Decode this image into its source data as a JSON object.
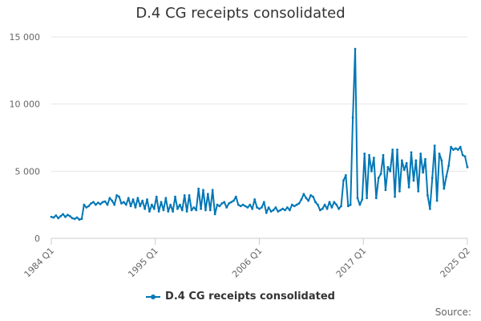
{
  "colors": {
    "series": "#0077b6",
    "grid": "#e6e6e6",
    "axis": "#cccccc"
  },
  "credits": "Source:",
  "chart_data": {
    "type": "line",
    "title": "D.4 CG receipts consolidated",
    "xlabel": "",
    "ylabel": "",
    "ylim": [
      0,
      15000
    ],
    "yticks": [
      {
        "value": 0,
        "label": "0"
      },
      {
        "value": 5000,
        "label": "5 000"
      },
      {
        "value": 10000,
        "label": "10 000"
      },
      {
        "value": 15000,
        "label": "15 000"
      }
    ],
    "xticks": [
      "1984 Q1",
      "1995 Q1",
      "2006 Q1",
      "2017 Q1",
      "2025 Q2"
    ],
    "grid": "horizontal",
    "legend": "bottom-center",
    "series": [
      {
        "name": "D.4 CG receipts consolidated",
        "values": [
          1600,
          1550,
          1700,
          1500,
          1650,
          1800,
          1600,
          1750,
          1650,
          1500,
          1450,
          1550,
          1400,
          1450,
          2500,
          2300,
          2400,
          2600,
          2700,
          2500,
          2650,
          2550,
          2700,
          2750,
          2500,
          3000,
          2800,
          2500,
          3200,
          3100,
          2600,
          2700,
          2500,
          3000,
          2400,
          2900,
          2300,
          3000,
          2400,
          2800,
          2200,
          2900,
          2000,
          2500,
          2200,
          3100,
          2000,
          2700,
          2100,
          3000,
          2000,
          2500,
          2000,
          3100,
          2200,
          2500,
          2100,
          3200,
          2000,
          3200,
          2100,
          2300,
          2100,
          3700,
          2200,
          3600,
          2100,
          3300,
          2100,
          3600,
          1800,
          2500,
          2400,
          2600,
          2700,
          2300,
          2600,
          2700,
          2800,
          3100,
          2500,
          2400,
          2500,
          2400,
          2300,
          2500,
          2200,
          2900,
          2300,
          2200,
          2300,
          2700,
          1900,
          2300,
          2000,
          2100,
          2300,
          2000,
          2100,
          2200,
          2100,
          2300,
          2100,
          2500,
          2400,
          2500,
          2600,
          2900,
          3300,
          3000,
          2800,
          3200,
          3100,
          2700,
          2500,
          2100,
          2200,
          2500,
          2200,
          2700,
          2300,
          2700,
          2500,
          2200,
          2400,
          4300,
          4700,
          2400,
          2500,
          9000,
          14100,
          3000,
          2500,
          2900,
          6300,
          3000,
          6200,
          5000,
          6000,
          3000,
          4500,
          4800,
          6200,
          3600,
          5300,
          5000,
          6600,
          3100,
          6600,
          3500,
          5800,
          5100,
          5600,
          3800,
          6400,
          4300,
          5800,
          3500,
          6300,
          4900,
          5900,
          3200,
          2200,
          4500,
          6900,
          2800,
          6300,
          5800,
          3700,
          4600,
          5400,
          6800,
          6600,
          6700,
          6600,
          6800,
          6200,
          6100,
          5300
        ]
      }
    ]
  }
}
